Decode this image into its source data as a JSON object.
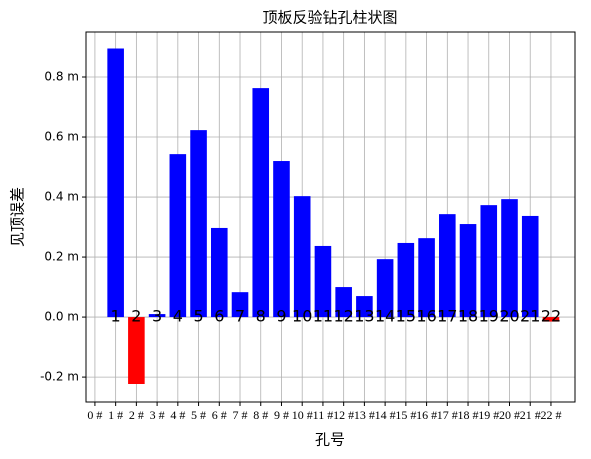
{
  "chart_data": {
    "type": "bar",
    "title": "顶板反验钻孔柱状图",
    "xlabel": "孔号",
    "ylabel": "见顶误差",
    "x": [
      1,
      2,
      3,
      4,
      5,
      6,
      7,
      8,
      9,
      10,
      11,
      12,
      13,
      14,
      15,
      16,
      17,
      18,
      19,
      20,
      21,
      22
    ],
    "values": [
      0.895,
      -0.223,
      0.01,
      0.543,
      0.623,
      0.297,
      0.083,
      0.763,
      0.52,
      0.403,
      0.237,
      0.1,
      0.07,
      0.193,
      0.247,
      0.263,
      0.343,
      0.31,
      0.373,
      0.393,
      0.337,
      -0.015
    ],
    "bar_labels": [
      1,
      2,
      3,
      4,
      5,
      6,
      7,
      8,
      9,
      10,
      11,
      12,
      13,
      14,
      15,
      16,
      17,
      18,
      19,
      20,
      21,
      22
    ],
    "colors": [
      "#0000ff",
      "#ff0000",
      "#0000ff",
      "#0000ff",
      "#0000ff",
      "#0000ff",
      "#0000ff",
      "#0000ff",
      "#0000ff",
      "#0000ff",
      "#0000ff",
      "#0000ff",
      "#0000ff",
      "#0000ff",
      "#0000ff",
      "#0000ff",
      "#0000ff",
      "#0000ff",
      "#0000ff",
      "#0000ff",
      "#0000ff",
      "#ff0000"
    ],
    "xlim": [
      -0.43,
      23.16
    ],
    "xticks": [
      {
        "value": 0,
        "label": "0 #"
      },
      {
        "value": 1,
        "label": "1 #"
      },
      {
        "value": 2,
        "label": "2 #"
      },
      {
        "value": 3,
        "label": "3 #"
      },
      {
        "value": 4,
        "label": "4 #"
      },
      {
        "value": 5,
        "label": "5 #"
      },
      {
        "value": 6,
        "label": "6 #"
      },
      {
        "value": 7,
        "label": "7 #"
      },
      {
        "value": 8,
        "label": "8 #"
      },
      {
        "value": 9,
        "label": "9 #"
      },
      {
        "value": 10,
        "label": "10 #"
      },
      {
        "value": 11,
        "label": "11 #"
      },
      {
        "value": 12,
        "label": "12 #"
      },
      {
        "value": 13,
        "label": "13 #"
      },
      {
        "value": 14,
        "label": "14 #"
      },
      {
        "value": 15,
        "label": "15 #"
      },
      {
        "value": 16,
        "label": "16 #"
      },
      {
        "value": 17,
        "label": "17 #"
      },
      {
        "value": 18,
        "label": "18 #"
      },
      {
        "value": 19,
        "label": "19 #"
      },
      {
        "value": 20,
        "label": "20 #"
      },
      {
        "value": 21,
        "label": "21 #"
      },
      {
        "value": 22,
        "label": "22 #"
      }
    ],
    "ylim": [
      -0.283,
      0.95
    ],
    "yticks": [
      {
        "value": -0.2,
        "label": "-0.2 m"
      },
      {
        "value": 0,
        "label": "0.0 m"
      },
      {
        "value": 0.2,
        "label": "0.2 m"
      },
      {
        "value": 0.4,
        "label": "0.4 m"
      },
      {
        "value": 0.6,
        "label": "0.6 m"
      },
      {
        "value": 0.8,
        "label": "0.8 m"
      }
    ],
    "bar_width": 0.8,
    "grid": true
  }
}
